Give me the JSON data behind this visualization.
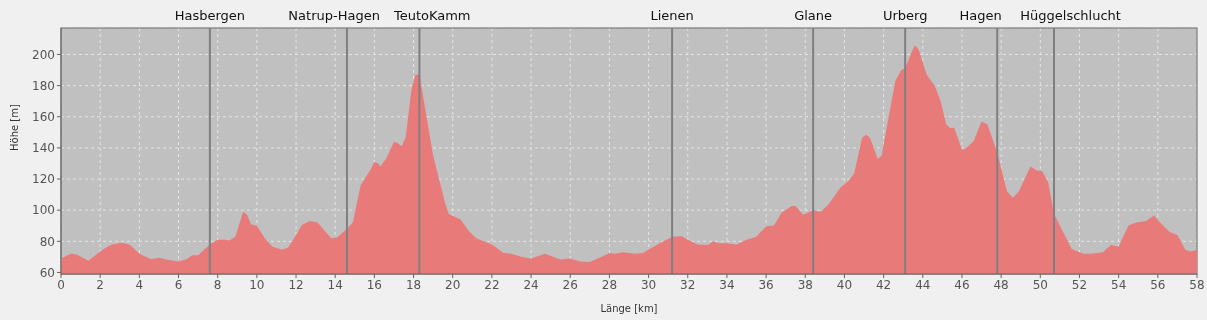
{
  "chart_data": {
    "type": "area",
    "xlabel": "Länge [km]",
    "ylabel": "Höhe [m]",
    "x": [
      0,
      0.5,
      0.8,
      1.4,
      1.9,
      2.3,
      2.6,
      3.1,
      3.5,
      4,
      4.6,
      5,
      5.5,
      6,
      6.4,
      6.7,
      7,
      7.6,
      8,
      8.4,
      8.6,
      8.9,
      9.3,
      9.5,
      9.7,
      10,
      10.4,
      10.8,
      11.3,
      11.6,
      12,
      12.3,
      12.7,
      13.1,
      13.8,
      14.1,
      14.6,
      14.9,
      15.3,
      15.8,
      16,
      16.2,
      16.3,
      16.6,
      17,
      17.2,
      17.4,
      17.6,
      17.9,
      18.1,
      18.3,
      19,
      19.6,
      19.8,
      20.4,
      20.8,
      21.2,
      22,
      22.6,
      23,
      23.5,
      24,
      24.7,
      25.5,
      26,
      26.5,
      27,
      27.6,
      28,
      28.3,
      28.7,
      29.3,
      29.7,
      30.5,
      31.2,
      31.7,
      32,
      32.5,
      33,
      33.3,
      33.6,
      34,
      34.5,
      35,
      35.5,
      36,
      36.4,
      36.8,
      37.3,
      37.5,
      37.9,
      38.4,
      38.8,
      39.2,
      39.8,
      40.2,
      40.5,
      40.9,
      41.1,
      41.3,
      41.7,
      41.9,
      42.2,
      42.6,
      42.9,
      43.1,
      43.4,
      43.6,
      43.8,
      44.2,
      44.6,
      44.9,
      45.2,
      45.4,
      45.6,
      46,
      46.2,
      46.6,
      47,
      47.3,
      47.8,
      48.3,
      48.6,
      48.9,
      49.2,
      49.5,
      49.8,
      50.1,
      50.4,
      50.7,
      51.2,
      51.6,
      52.2,
      52.6,
      53.2,
      53.6,
      54,
      54.5,
      54.9,
      55.4,
      55.8,
      56.2,
      56.6,
      57,
      57.4,
      57.7,
      58
    ],
    "series": [
      {
        "color": "#e87a7a",
        "values": [
          69,
          72,
          71.5,
          67.5,
          72.5,
          76,
          78,
          79,
          78,
          72,
          68.5,
          69.5,
          68,
          67,
          68.5,
          71,
          71,
          78,
          81,
          81,
          80.5,
          83,
          99,
          97,
          91,
          90,
          82,
          76.5,
          74.5,
          76,
          84,
          90.5,
          93,
          92,
          82,
          82.5,
          88,
          92,
          116,
          126,
          131,
          130,
          128,
          133,
          144,
          143,
          141,
          147,
          178,
          187,
          187,
          135,
          105,
          97.5,
          94,
          87,
          82,
          78,
          72.5,
          72,
          70,
          69,
          72,
          68.3,
          69,
          67,
          66.7,
          70,
          72.5,
          72,
          73,
          72,
          72.5,
          78.3,
          83,
          83.3,
          81,
          78,
          77.7,
          79.8,
          78.8,
          78.8,
          78,
          81,
          83,
          89.6,
          90.2,
          98.5,
          102.7,
          102.7,
          97,
          100,
          99,
          104,
          114.6,
          118.8,
          123.5,
          146.5,
          148.5,
          146.5,
          133,
          135,
          156,
          183,
          190,
          191,
          200.6,
          206,
          202.7,
          187,
          180,
          170.4,
          155,
          152.7,
          153,
          139,
          139.6,
          144.4,
          157,
          155,
          137,
          112,
          108,
          112,
          120,
          128,
          125.6,
          125,
          118,
          97.5,
          85,
          75,
          72,
          72,
          73,
          77.7,
          76.7,
          90.2,
          92,
          93,
          96.5,
          91,
          86,
          84,
          74.6,
          73.5,
          74.6
        ]
      }
    ],
    "xlim": [
      0,
      58
    ],
    "xticks": [
      0,
      2,
      4,
      6,
      8,
      10,
      12,
      14,
      16,
      18,
      20,
      22,
      24,
      26,
      28,
      30,
      32,
      34,
      36,
      38,
      40,
      42,
      44,
      46,
      48,
      50,
      52,
      54,
      56,
      58
    ],
    "ylim": [
      59,
      217
    ],
    "yticks": [
      60,
      80,
      100,
      120,
      140,
      160,
      180,
      200
    ],
    "grid": true,
    "ref_lines": [
      {
        "axis": "x",
        "value": 7.6,
        "label": "Hasbergen",
        "color": "#7f7f7f"
      },
      {
        "axis": "x",
        "value": 14.6,
        "label": "Natrup-Hagen",
        "color": "#7f7f7f"
      },
      {
        "axis": "x",
        "value": 18.3,
        "label": "TeutoKamm",
        "color": "#7f7f7f"
      },
      {
        "axis": "x",
        "value": 31.2,
        "label": "Lienen",
        "color": "#7f7f7f"
      },
      {
        "axis": "x",
        "value": 38.4,
        "label": "Glane",
        "color": "#7f7f7f"
      },
      {
        "axis": "x",
        "value": 43.1,
        "label": "Urberg",
        "color": "#7f7f7f"
      },
      {
        "axis": "x",
        "value": 47.8,
        "label": "Hagen",
        "color": "#7f7f7f"
      },
      {
        "axis": "x",
        "value": 50.7,
        "label": "Hüggelschlucht",
        "color": "#7f7f7f"
      }
    ]
  }
}
